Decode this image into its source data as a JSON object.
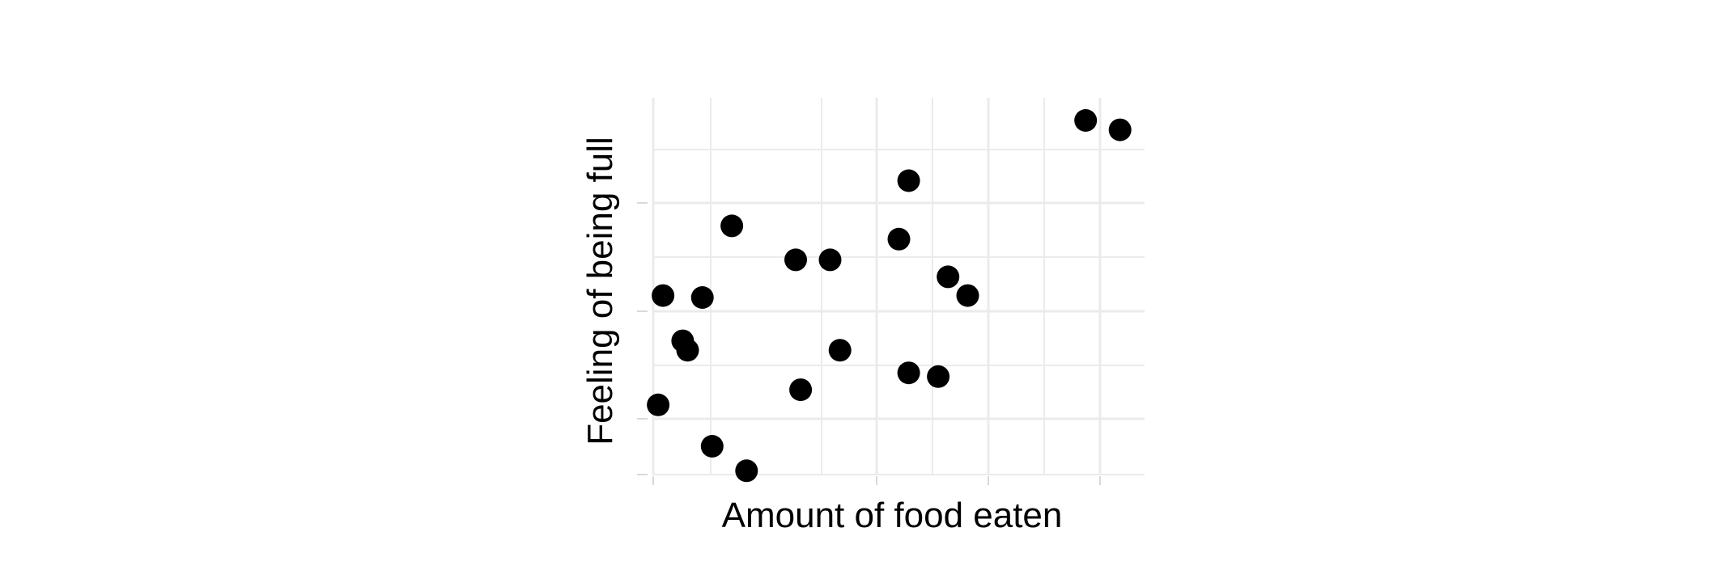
{
  "chart_data": {
    "type": "scatter",
    "xlabel": "Amount of food eaten",
    "ylabel": "Feeling of being full",
    "xlim": [
      0,
      1
    ],
    "ylim": [
      0,
      1
    ],
    "grid": true,
    "legend": "none",
    "tick_labels": "none",
    "series": [
      {
        "color": "#000000",
        "points": [
          {
            "x": 0.01,
            "y": 0.185
          },
          {
            "x": 0.02,
            "y": 0.475
          },
          {
            "x": 0.06,
            "y": 0.355
          },
          {
            "x": 0.07,
            "y": 0.33
          },
          {
            "x": 0.1,
            "y": 0.47
          },
          {
            "x": 0.12,
            "y": 0.075
          },
          {
            "x": 0.16,
            "y": 0.66
          },
          {
            "x": 0.19,
            "y": 0.01
          },
          {
            "x": 0.29,
            "y": 0.57
          },
          {
            "x": 0.3,
            "y": 0.225
          },
          {
            "x": 0.36,
            "y": 0.57
          },
          {
            "x": 0.38,
            "y": 0.33
          },
          {
            "x": 0.5,
            "y": 0.625
          },
          {
            "x": 0.52,
            "y": 0.78
          },
          {
            "x": 0.52,
            "y": 0.27
          },
          {
            "x": 0.58,
            "y": 0.26
          },
          {
            "x": 0.6,
            "y": 0.525
          },
          {
            "x": 0.64,
            "y": 0.475
          },
          {
            "x": 0.88,
            "y": 0.94
          },
          {
            "x": 0.95,
            "y": 0.915
          }
        ]
      }
    ]
  }
}
